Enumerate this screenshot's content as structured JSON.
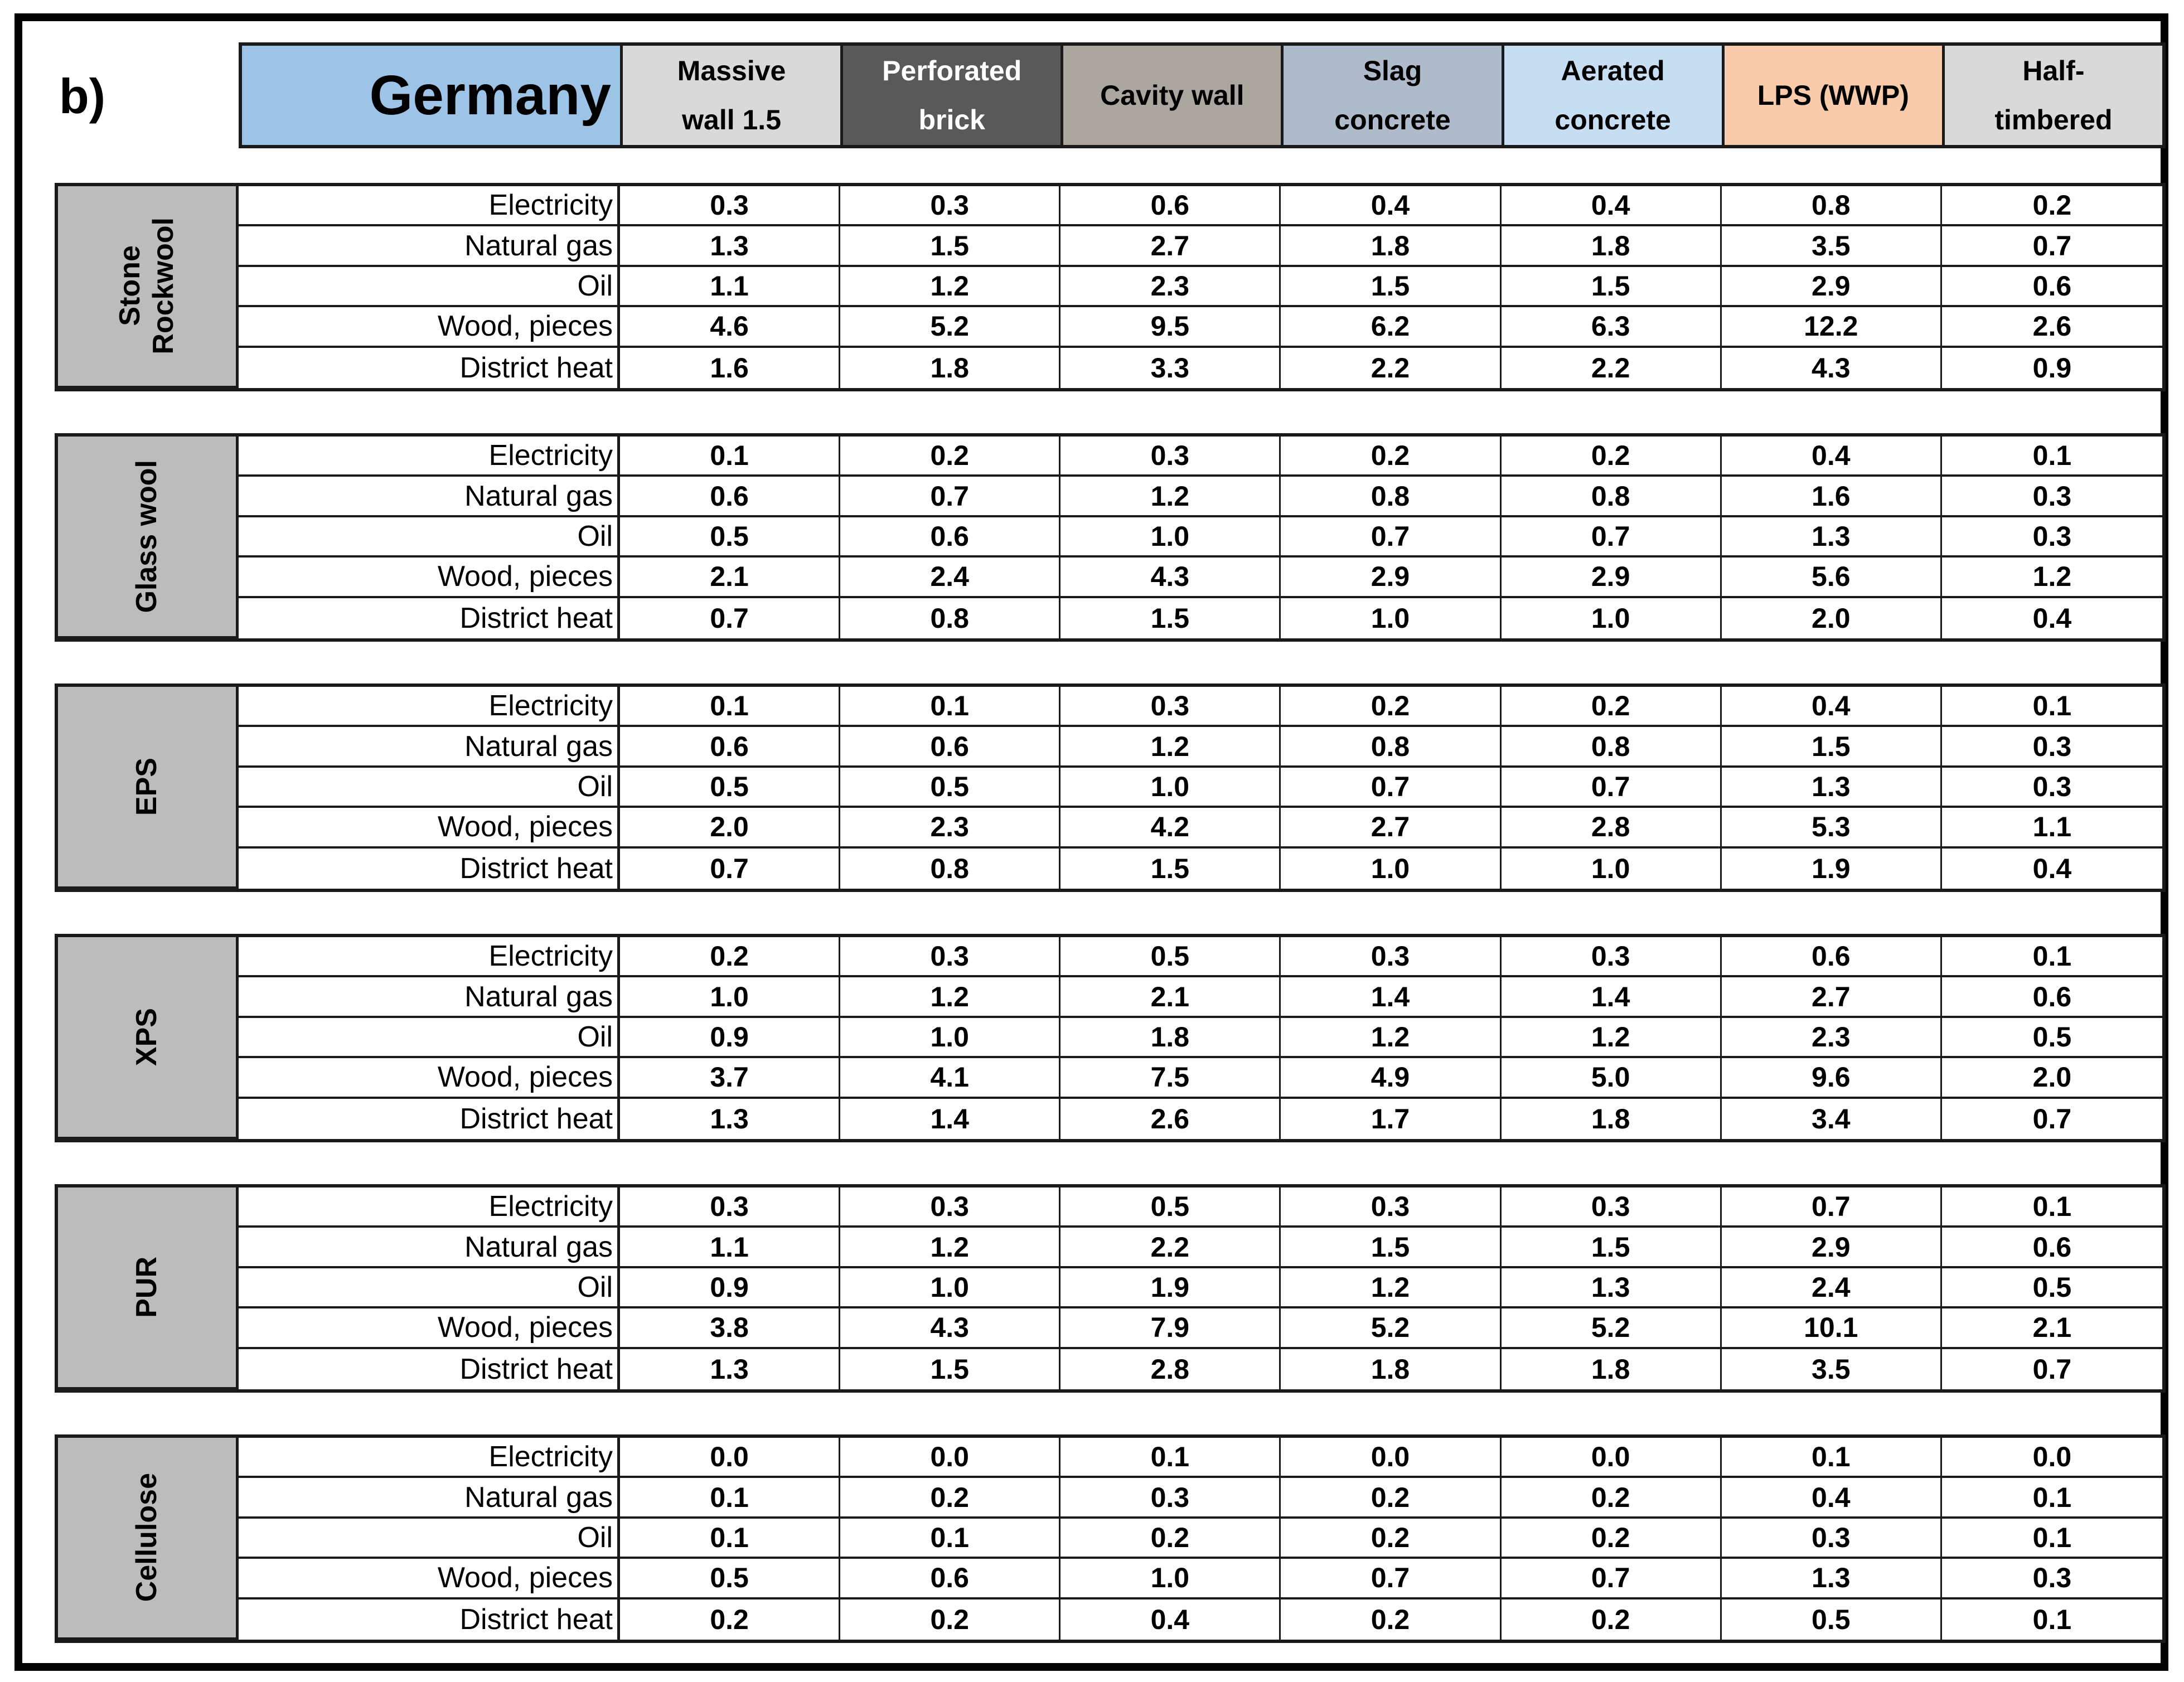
{
  "panel_label": "b)",
  "table": {
    "country_header": "Germany",
    "wall_columns": [
      {
        "line1": "Massive",
        "line2": "wall 1.5",
        "bg": "#D9D9D9",
        "fg": "#000000"
      },
      {
        "line1": "Perforated",
        "line2": "brick",
        "bg": "#595959",
        "fg": "#FFFFFF"
      },
      {
        "line1": "Cavity wall",
        "line2": "",
        "bg": "#ACA6A0",
        "fg": "#000000"
      },
      {
        "line1": "Slag",
        "line2": "concrete",
        "bg": "#AFBACA",
        "fg": "#000000"
      },
      {
        "line1": "Aerated",
        "line2": "concrete",
        "bg": "#C7DDF1",
        "fg": "#000000"
      },
      {
        "line1": "LPS (WWP)",
        "line2": "",
        "bg": "#F8CBAD",
        "fg": "#000000"
      },
      {
        "line1": "Half-",
        "line2": "timbered",
        "bg": "#D9D9D9",
        "fg": "#000000"
      }
    ],
    "energy_rows": [
      "Electricity",
      "Natural gas",
      "Oil",
      "Wood, pieces",
      "District heat"
    ],
    "insulation_blocks": [
      {
        "name": "Stone\nRockwool",
        "values": [
          [
            "0.3",
            "0.3",
            "0.6",
            "0.4",
            "0.4",
            "0.8",
            "0.2"
          ],
          [
            "1.3",
            "1.5",
            "2.7",
            "1.8",
            "1.8",
            "3.5",
            "0.7"
          ],
          [
            "1.1",
            "1.2",
            "2.3",
            "1.5",
            "1.5",
            "2.9",
            "0.6"
          ],
          [
            "4.6",
            "5.2",
            "9.5",
            "6.2",
            "6.3",
            "12.2",
            "2.6"
          ],
          [
            "1.6",
            "1.8",
            "3.3",
            "2.2",
            "2.2",
            "4.3",
            "0.9"
          ]
        ]
      },
      {
        "name": "Glass wool",
        "values": [
          [
            "0.1",
            "0.2",
            "0.3",
            "0.2",
            "0.2",
            "0.4",
            "0.1"
          ],
          [
            "0.6",
            "0.7",
            "1.2",
            "0.8",
            "0.8",
            "1.6",
            "0.3"
          ],
          [
            "0.5",
            "0.6",
            "1.0",
            "0.7",
            "0.7",
            "1.3",
            "0.3"
          ],
          [
            "2.1",
            "2.4",
            "4.3",
            "2.9",
            "2.9",
            "5.6",
            "1.2"
          ],
          [
            "0.7",
            "0.8",
            "1.5",
            "1.0",
            "1.0",
            "2.0",
            "0.4"
          ]
        ]
      },
      {
        "name": "EPS",
        "values": [
          [
            "0.1",
            "0.1",
            "0.3",
            "0.2",
            "0.2",
            "0.4",
            "0.1"
          ],
          [
            "0.6",
            "0.6",
            "1.2",
            "0.8",
            "0.8",
            "1.5",
            "0.3"
          ],
          [
            "0.5",
            "0.5",
            "1.0",
            "0.7",
            "0.7",
            "1.3",
            "0.3"
          ],
          [
            "2.0",
            "2.3",
            "4.2",
            "2.7",
            "2.8",
            "5.3",
            "1.1"
          ],
          [
            "0.7",
            "0.8",
            "1.5",
            "1.0",
            "1.0",
            "1.9",
            "0.4"
          ]
        ]
      },
      {
        "name": "XPS",
        "values": [
          [
            "0.2",
            "0.3",
            "0.5",
            "0.3",
            "0.3",
            "0.6",
            "0.1"
          ],
          [
            "1.0",
            "1.2",
            "2.1",
            "1.4",
            "1.4",
            "2.7",
            "0.6"
          ],
          [
            "0.9",
            "1.0",
            "1.8",
            "1.2",
            "1.2",
            "2.3",
            "0.5"
          ],
          [
            "3.7",
            "4.1",
            "7.5",
            "4.9",
            "5.0",
            "9.6",
            "2.0"
          ],
          [
            "1.3",
            "1.4",
            "2.6",
            "1.7",
            "1.8",
            "3.4",
            "0.7"
          ]
        ]
      },
      {
        "name": "PUR",
        "values": [
          [
            "0.3",
            "0.3",
            "0.5",
            "0.3",
            "0.3",
            "0.7",
            "0.1"
          ],
          [
            "1.1",
            "1.2",
            "2.2",
            "1.5",
            "1.5",
            "2.9",
            "0.6"
          ],
          [
            "0.9",
            "1.0",
            "1.9",
            "1.2",
            "1.3",
            "2.4",
            "0.5"
          ],
          [
            "3.8",
            "4.3",
            "7.9",
            "5.2",
            "5.2",
            "10.1",
            "2.1"
          ],
          [
            "1.3",
            "1.5",
            "2.8",
            "1.8",
            "1.8",
            "3.5",
            "0.7"
          ]
        ]
      },
      {
        "name": "Cellulose",
        "values": [
          [
            "0.0",
            "0.0",
            "0.1",
            "0.0",
            "0.0",
            "0.1",
            "0.0"
          ],
          [
            "0.1",
            "0.2",
            "0.3",
            "0.2",
            "0.2",
            "0.4",
            "0.1"
          ],
          [
            "0.1",
            "0.1",
            "0.2",
            "0.2",
            "0.2",
            "0.3",
            "0.1"
          ],
          [
            "0.5",
            "0.6",
            "1.0",
            "0.7",
            "0.7",
            "1.3",
            "0.3"
          ],
          [
            "0.2",
            "0.2",
            "0.4",
            "0.2",
            "0.2",
            "0.5",
            "0.1"
          ]
        ]
      }
    ]
  },
  "colors": {
    "country_bg": "#9DC3E6",
    "block_label_bg": "#BCBCBC",
    "grid_line": "#1A1A1A",
    "frame": "#000000",
    "table_bg": "#FFFFFF"
  },
  "chart_data": {
    "type": "table",
    "title": "Germany",
    "columns": [
      "Massive wall 1.5",
      "Perforated brick",
      "Cavity wall",
      "Slag concrete",
      "Aerated concrete",
      "LPS (WWP)",
      "Half-timbered"
    ],
    "row_groups": [
      "Stone Rockwool",
      "Glass wool",
      "EPS",
      "XPS",
      "PUR",
      "Cellulose"
    ],
    "rows_per_group": [
      "Electricity",
      "Natural gas",
      "Oil",
      "Wood, pieces",
      "District heat"
    ],
    "values": {
      "Stone Rockwool": [
        [
          0.3,
          0.3,
          0.6,
          0.4,
          0.4,
          0.8,
          0.2
        ],
        [
          1.3,
          1.5,
          2.7,
          1.8,
          1.8,
          3.5,
          0.7
        ],
        [
          1.1,
          1.2,
          2.3,
          1.5,
          1.5,
          2.9,
          0.6
        ],
        [
          4.6,
          5.2,
          9.5,
          6.2,
          6.3,
          12.2,
          2.6
        ],
        [
          1.6,
          1.8,
          3.3,
          2.2,
          2.2,
          4.3,
          0.9
        ]
      ],
      "Glass wool": [
        [
          0.1,
          0.2,
          0.3,
          0.2,
          0.2,
          0.4,
          0.1
        ],
        [
          0.6,
          0.7,
          1.2,
          0.8,
          0.8,
          1.6,
          0.3
        ],
        [
          0.5,
          0.6,
          1.0,
          0.7,
          0.7,
          1.3,
          0.3
        ],
        [
          2.1,
          2.4,
          4.3,
          2.9,
          2.9,
          5.6,
          1.2
        ],
        [
          0.7,
          0.8,
          1.5,
          1.0,
          1.0,
          2.0,
          0.4
        ]
      ],
      "EPS": [
        [
          0.1,
          0.1,
          0.3,
          0.2,
          0.2,
          0.4,
          0.1
        ],
        [
          0.6,
          0.6,
          1.2,
          0.8,
          0.8,
          1.5,
          0.3
        ],
        [
          0.5,
          0.5,
          1.0,
          0.7,
          0.7,
          1.3,
          0.3
        ],
        [
          2.0,
          2.3,
          4.2,
          2.7,
          2.8,
          5.3,
          1.1
        ],
        [
          0.7,
          0.8,
          1.5,
          1.0,
          1.0,
          1.9,
          0.4
        ]
      ],
      "XPS": [
        [
          0.2,
          0.3,
          0.5,
          0.3,
          0.3,
          0.6,
          0.1
        ],
        [
          1.0,
          1.2,
          2.1,
          1.4,
          1.4,
          2.7,
          0.6
        ],
        [
          0.9,
          1.0,
          1.8,
          1.2,
          1.2,
          2.3,
          0.5
        ],
        [
          3.7,
          4.1,
          7.5,
          4.9,
          5.0,
          9.6,
          2.0
        ],
        [
          1.3,
          1.4,
          2.6,
          1.7,
          1.8,
          3.4,
          0.7
        ]
      ],
      "PUR": [
        [
          0.3,
          0.3,
          0.5,
          0.3,
          0.3,
          0.7,
          0.1
        ],
        [
          1.1,
          1.2,
          2.2,
          1.5,
          1.5,
          2.9,
          0.6
        ],
        [
          0.9,
          1.0,
          1.9,
          1.2,
          1.3,
          2.4,
          0.5
        ],
        [
          3.8,
          4.3,
          7.9,
          5.2,
          5.2,
          10.1,
          2.1
        ],
        [
          1.3,
          1.5,
          2.8,
          1.8,
          1.8,
          3.5,
          0.7
        ]
      ],
      "Cellulose": [
        [
          0.0,
          0.0,
          0.1,
          0.0,
          0.0,
          0.1,
          0.0
        ],
        [
          0.1,
          0.2,
          0.3,
          0.2,
          0.2,
          0.4,
          0.1
        ],
        [
          0.1,
          0.1,
          0.2,
          0.2,
          0.2,
          0.3,
          0.1
        ],
        [
          0.5,
          0.6,
          1.0,
          0.7,
          0.7,
          1.3,
          0.3
        ],
        [
          0.2,
          0.2,
          0.4,
          0.2,
          0.2,
          0.5,
          0.1
        ]
      ]
    }
  }
}
